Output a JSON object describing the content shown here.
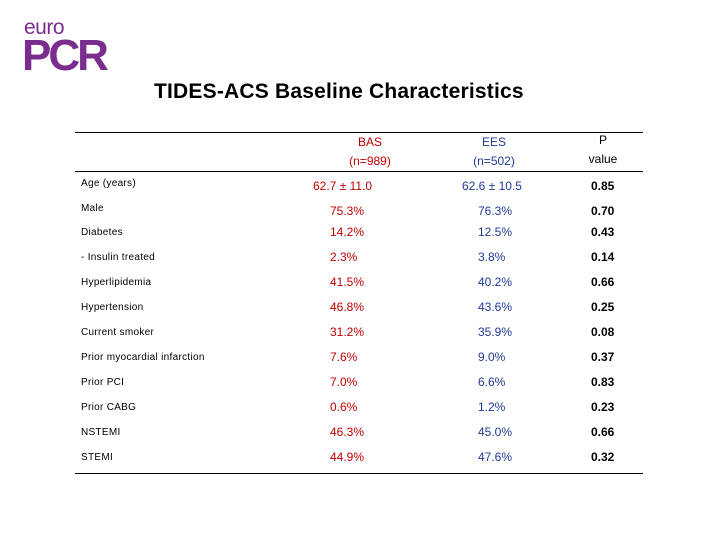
{
  "logo": {
    "top": "euro",
    "main": "PCR"
  },
  "title": "TIDES-ACS Baseline Characteristics",
  "header": {
    "bas": {
      "name": "BAS",
      "n": "(n=989)"
    },
    "ees": {
      "name": "EES",
      "n": "(n=502)"
    },
    "p": {
      "line1": "P",
      "line2": "value"
    }
  },
  "rows": [
    {
      "label": "Age (years)",
      "bas": "62.7 ± 11.0",
      "ees": "62.6 ± 10.5",
      "p": "0.85"
    },
    {
      "label": "Male",
      "bas": "75.3%",
      "ees": "76.3%",
      "p": "0.70"
    },
    {
      "label": "Diabetes",
      "bas": "14.2%",
      "ees": "12.5%",
      "p": "0.43"
    },
    {
      "label": "- Insulin treated",
      "bas": "2.3%",
      "ees": "3.8%",
      "p": "0.14"
    },
    {
      "label": "Hyperlipidemia",
      "bas": "41.5%",
      "ees": "40.2%",
      "p": "0.66"
    },
    {
      "label": "Hypertension",
      "bas": "46.8%",
      "ees": "43.6%",
      "p": "0.25"
    },
    {
      "label": "Current smoker",
      "bas": "31.2%",
      "ees": "35.9%",
      "p": "0.08"
    },
    {
      "label": "Prior myocardial infarction",
      "bas": "7.6%",
      "ees": "9.0%",
      "p": "0.37"
    },
    {
      "label": "Prior PCI",
      "bas": "7.0%",
      "ees": "6.6%",
      "p": "0.83"
    },
    {
      "label": "Prior CABG",
      "bas": "0.6%",
      "ees": "1.2%",
      "p": "0.23"
    },
    {
      "label": "NSTEMI",
      "bas": "46.3%",
      "ees": "45.0%",
      "p": "0.66"
    },
    {
      "label": "STEMI",
      "bas": "44.9%",
      "ees": "47.6%",
      "p": "0.32"
    }
  ]
}
